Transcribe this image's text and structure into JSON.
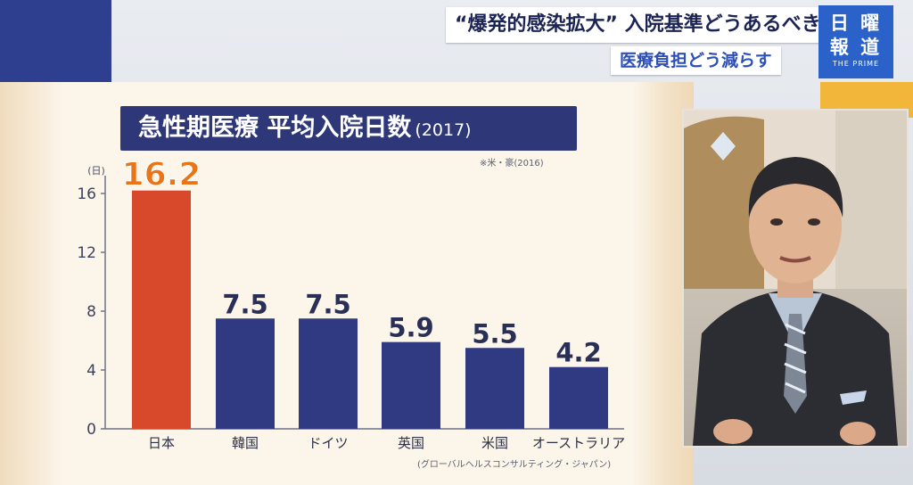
{
  "header": {
    "headline": "“爆発的感染拡大” 入院基準どうあるべき",
    "subheadline": "医療負担どう減らす",
    "logo_line1": "日 曜",
    "logo_line2": "報 道",
    "logo_line3": "THE PRIME"
  },
  "chart_data": {
    "type": "bar",
    "title": "急性期医療 平均入院日数",
    "title_year": "(2017)",
    "note": "※米・豪(2016)",
    "source": "(グローバルヘルスコンサルティング・ジャパン)",
    "ylabel": "(日)",
    "ylim": [
      0,
      16
    ],
    "yticks": [
      0,
      4,
      8,
      12,
      16
    ],
    "categories": [
      "日本",
      "韓国",
      "ドイツ",
      "英国",
      "米国",
      "オーストラリア"
    ],
    "values": [
      16.2,
      7.5,
      7.5,
      5.9,
      5.5,
      4.2
    ],
    "value_labels": [
      "16.2",
      "7.5",
      "7.5",
      "5.9",
      "5.5",
      "4.2"
    ],
    "highlight_index": 0,
    "colors": {
      "highlight": "#d8492c",
      "bar": "#2f3a82",
      "highlight_label": "#ea7418",
      "label": "#2a2f55"
    }
  }
}
